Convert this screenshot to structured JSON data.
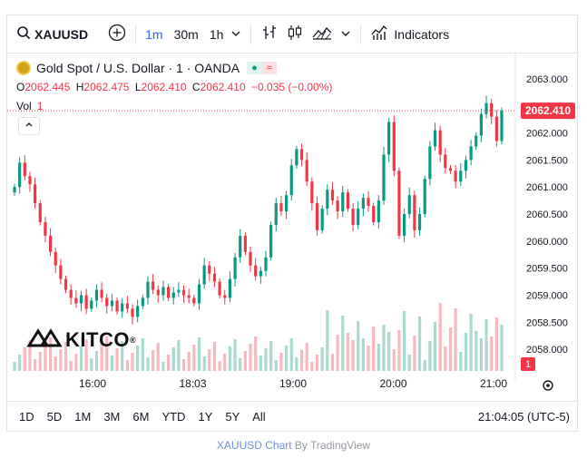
{
  "toolbar": {
    "symbol": "XAUUSD",
    "intervals": [
      "1m",
      "30m",
      "1h"
    ],
    "active_interval": "1m",
    "indicators_label": "Indicators"
  },
  "legend": {
    "title": "Gold Spot / U.S. Dollar · 1 · OANDA",
    "open_label": "O",
    "open": "2062.445",
    "high_label": "H",
    "high": "2062.475",
    "low_label": "L",
    "low": "2062.410",
    "close_label": "C",
    "close": "2062.410",
    "change": "−0.035 (−0.00%)",
    "vol_label": "Vol",
    "vol_value": "1"
  },
  "price_scale": {
    "last_price": "2062.410",
    "last_volume": "1"
  },
  "branding": {
    "logo_text": "KITCO",
    "registered": "®"
  },
  "ranges": [
    "1D",
    "5D",
    "1M",
    "3M",
    "6M",
    "YTD",
    "1Y",
    "5Y",
    "All"
  ],
  "clock": "21:04:05 (UTC-5)",
  "footer": {
    "link_text": "XAUUSD Chart",
    "suffix": " By TradingView"
  },
  "colors": {
    "up": "#089981",
    "down": "#f23645",
    "accent": "#2962ff",
    "up_vol": "#a9d9cf",
    "down_vol": "#f7b9bf"
  },
  "chart_data": {
    "type": "candlestick",
    "title": "Gold Spot / U.S. Dollar · 1 · OANDA",
    "x_ticks": [
      "16:00",
      "18:03",
      "19:00",
      "20:00",
      "21:00"
    ],
    "y_ticks": [
      "2063.000",
      "2062.500",
      "2062.000",
      "2061.500",
      "2061.000",
      "2060.500",
      "2060.000",
      "2059.500",
      "2059.000",
      "2058.500",
      "2058.000"
    ],
    "ylim": [
      2057.6,
      2063.2
    ],
    "last": 2062.41,
    "series": [
      {
        "name": "Close",
        "values": [
          2061.0,
          2061.45,
          2061.2,
          2061.05,
          2060.7,
          2060.35,
          2060.1,
          2059.8,
          2059.55,
          2059.3,
          2059.1,
          2058.95,
          2058.85,
          2059.0,
          2058.75,
          2058.9,
          2059.1,
          2058.95,
          2058.8,
          2058.9,
          2058.7,
          2058.85,
          2058.75,
          2058.6,
          2058.8,
          2058.95,
          2059.25,
          2059.1,
          2059.0,
          2059.15,
          2058.95,
          2059.05,
          2059.1,
          2059.0,
          2058.95,
          2058.85,
          2059.2,
          2059.55,
          2059.4,
          2059.25,
          2059.0,
          2058.95,
          2059.3,
          2059.7,
          2060.1,
          2059.8,
          2059.55,
          2059.35,
          2059.45,
          2059.7,
          2060.3,
          2060.7,
          2060.55,
          2060.85,
          2061.4,
          2061.7,
          2061.5,
          2061.1,
          2060.7,
          2060.2,
          2060.6,
          2060.95,
          2060.75,
          2060.55,
          2060.9,
          2060.6,
          2060.3,
          2060.6,
          2060.8,
          2060.65,
          2060.35,
          2060.75,
          2061.6,
          2062.2,
          2061.3,
          2060.1,
          2060.5,
          2060.85,
          2060.2,
          2060.5,
          2061.15,
          2061.75,
          2062.05,
          2061.6,
          2061.35,
          2061.3,
          2061.1,
          2061.3,
          2061.5,
          2061.75,
          2061.95,
          2062.35,
          2062.55,
          2062.3,
          2061.85,
          2062.41
        ]
      }
    ],
    "volume": {
      "name": "Vol",
      "last": 1
    }
  }
}
